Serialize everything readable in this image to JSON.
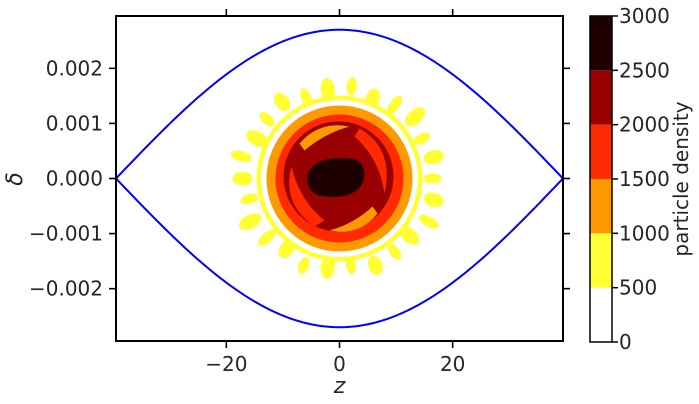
{
  "chart_data": {
    "type": "heatmap",
    "title": "",
    "xlabel": "z",
    "ylabel": "δ",
    "xlim": [
      -39.5,
      39.5
    ],
    "ylim": [
      -0.00295,
      0.00295
    ],
    "x_ticks": [
      -20,
      0,
      20
    ],
    "x_tick_labels": [
      "−20",
      "0",
      "20"
    ],
    "y_ticks": [
      -0.002,
      -0.001,
      0.0,
      0.001,
      0.002
    ],
    "y_tick_labels": [
      "−0.002",
      "−0.001",
      "0.000",
      "0.001",
      "0.002"
    ],
    "separatrix": {
      "name": "",
      "color": "#0000ff",
      "z_extent": [
        -39.5,
        39.5
      ],
      "delta_max": 0.0027
    },
    "colorbar": {
      "label": "particle density",
      "levels": [
        0,
        500,
        1000,
        1500,
        2000,
        2500,
        3000
      ],
      "tick_labels": [
        "0",
        "500",
        "1000",
        "1500",
        "2000",
        "2500",
        "3000"
      ],
      "colors": [
        "#ffffff",
        "#ffff33",
        "#ff9900",
        "#ff2a00",
        "#990000",
        "#1e0000"
      ]
    },
    "density_levels_in_plot": [
      {
        "range": [
          500,
          1000
        ],
        "color": "#ffff33"
      },
      {
        "range": [
          1000,
          1500
        ],
        "color": "#ff9900"
      },
      {
        "range": [
          1500,
          2000
        ],
        "color": "#ff2a00"
      },
      {
        "range": [
          2000,
          2500
        ],
        "color": "#990000"
      },
      {
        "range": [
          2500,
          3000
        ],
        "color": "#1e0000"
      }
    ]
  }
}
